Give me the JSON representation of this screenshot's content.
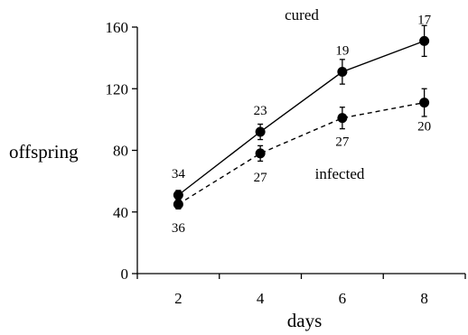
{
  "chart_data": {
    "type": "line",
    "xlabel": "days",
    "ylabel": "offspring",
    "x": [
      2,
      4,
      6,
      8
    ],
    "xticks": [
      "2",
      "4",
      "6",
      "8"
    ],
    "xlim": [
      1,
      9
    ],
    "ylim": [
      0,
      160
    ],
    "yticks": [
      "0",
      "40",
      "80",
      "120",
      "160"
    ],
    "grid": false,
    "colors": {
      "line": "#000000",
      "marker": "#000000"
    },
    "series": [
      {
        "name": "cured",
        "line_style": "solid",
        "values": [
          51,
          92,
          131,
          151
        ],
        "error": [
          3,
          5,
          8,
          10
        ],
        "n_labels": [
          "34",
          "23",
          "19",
          "17"
        ]
      },
      {
        "name": "infected",
        "line_style": "dashed",
        "values": [
          45,
          78,
          101,
          111
        ],
        "error": [
          3,
          5,
          7,
          9
        ],
        "n_labels": [
          "36",
          "27",
          "27",
          "20"
        ]
      }
    ]
  }
}
